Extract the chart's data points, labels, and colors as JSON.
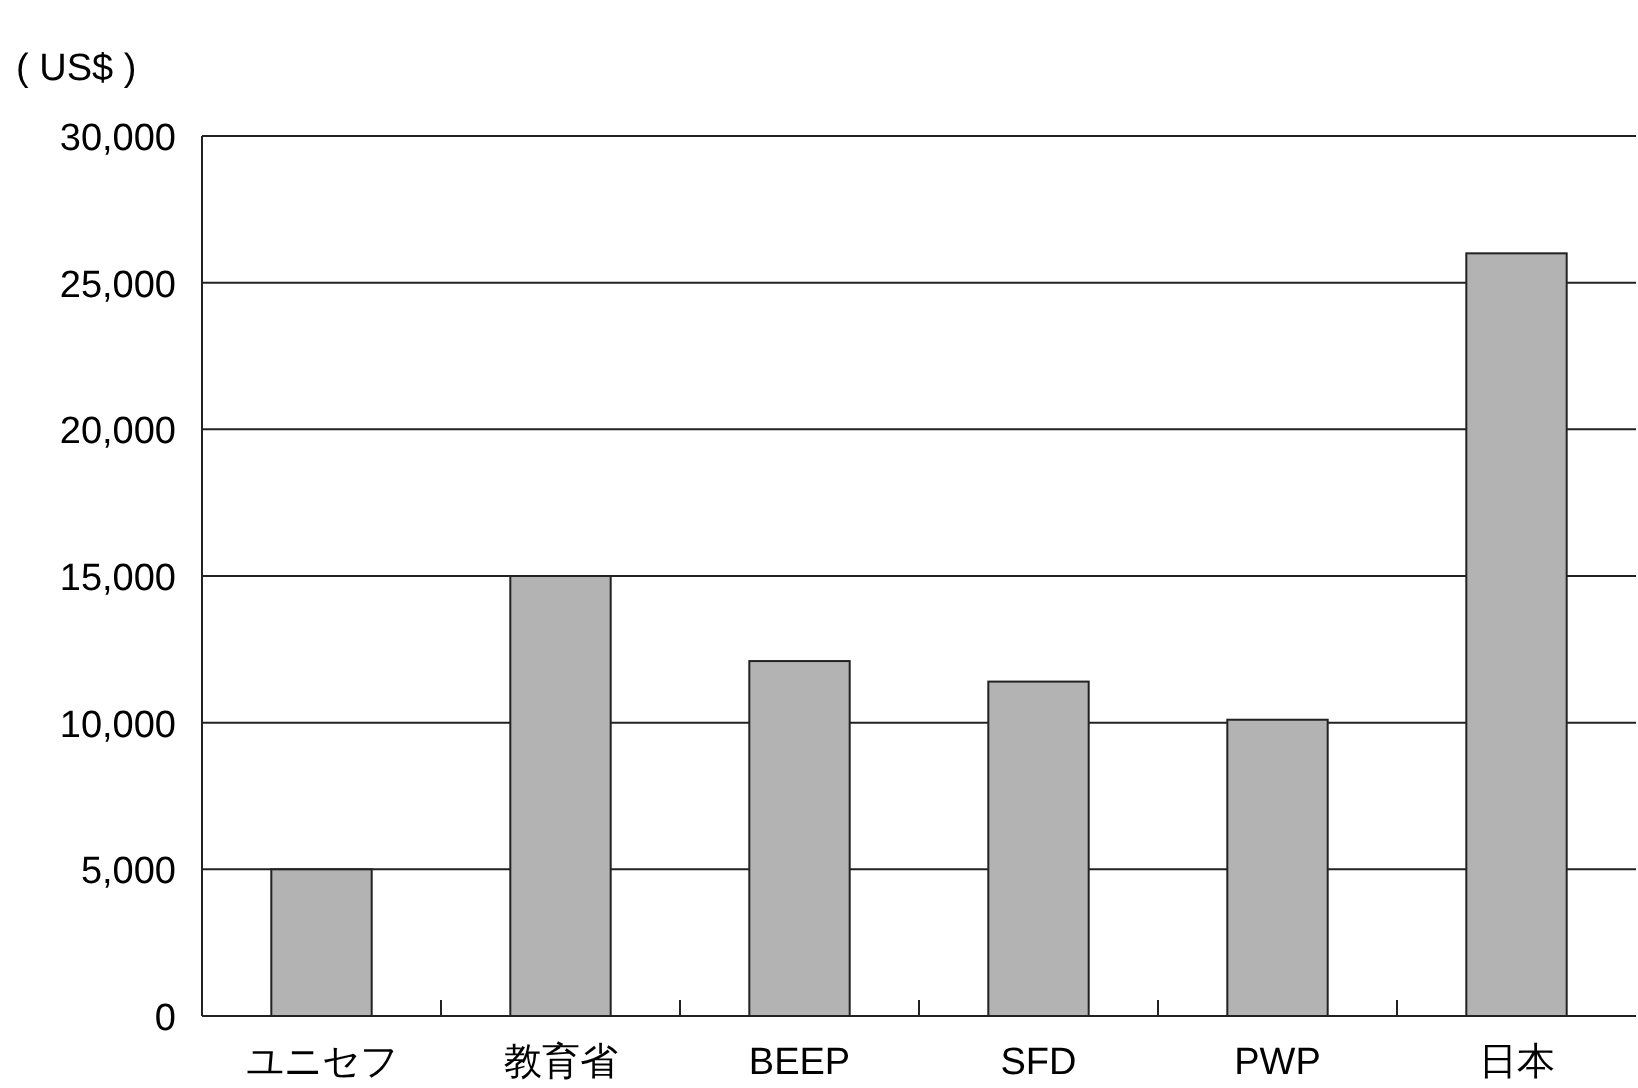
{
  "chart_data": {
    "type": "bar",
    "ylabel": "( US$ )",
    "categories": [
      "ユニセフ",
      "教育省",
      "BEEP",
      "SFD",
      "PWP",
      "日本"
    ],
    "values": [
      5000,
      15000,
      12100,
      11400,
      10100,
      26000
    ],
    "color": "#b3b3b3",
    "ylim": [
      0,
      30000
    ],
    "yticks": [
      {
        "value": 0,
        "label": "0"
      },
      {
        "value": 5000,
        "label": "5,000"
      },
      {
        "value": 10000,
        "label": "10,000"
      },
      {
        "value": 15000,
        "label": "15,000"
      },
      {
        "value": 20000,
        "label": "20,000"
      },
      {
        "value": 25000,
        "label": "25,000"
      },
      {
        "value": 30000,
        "label": "30,000"
      }
    ],
    "grid": "y"
  }
}
